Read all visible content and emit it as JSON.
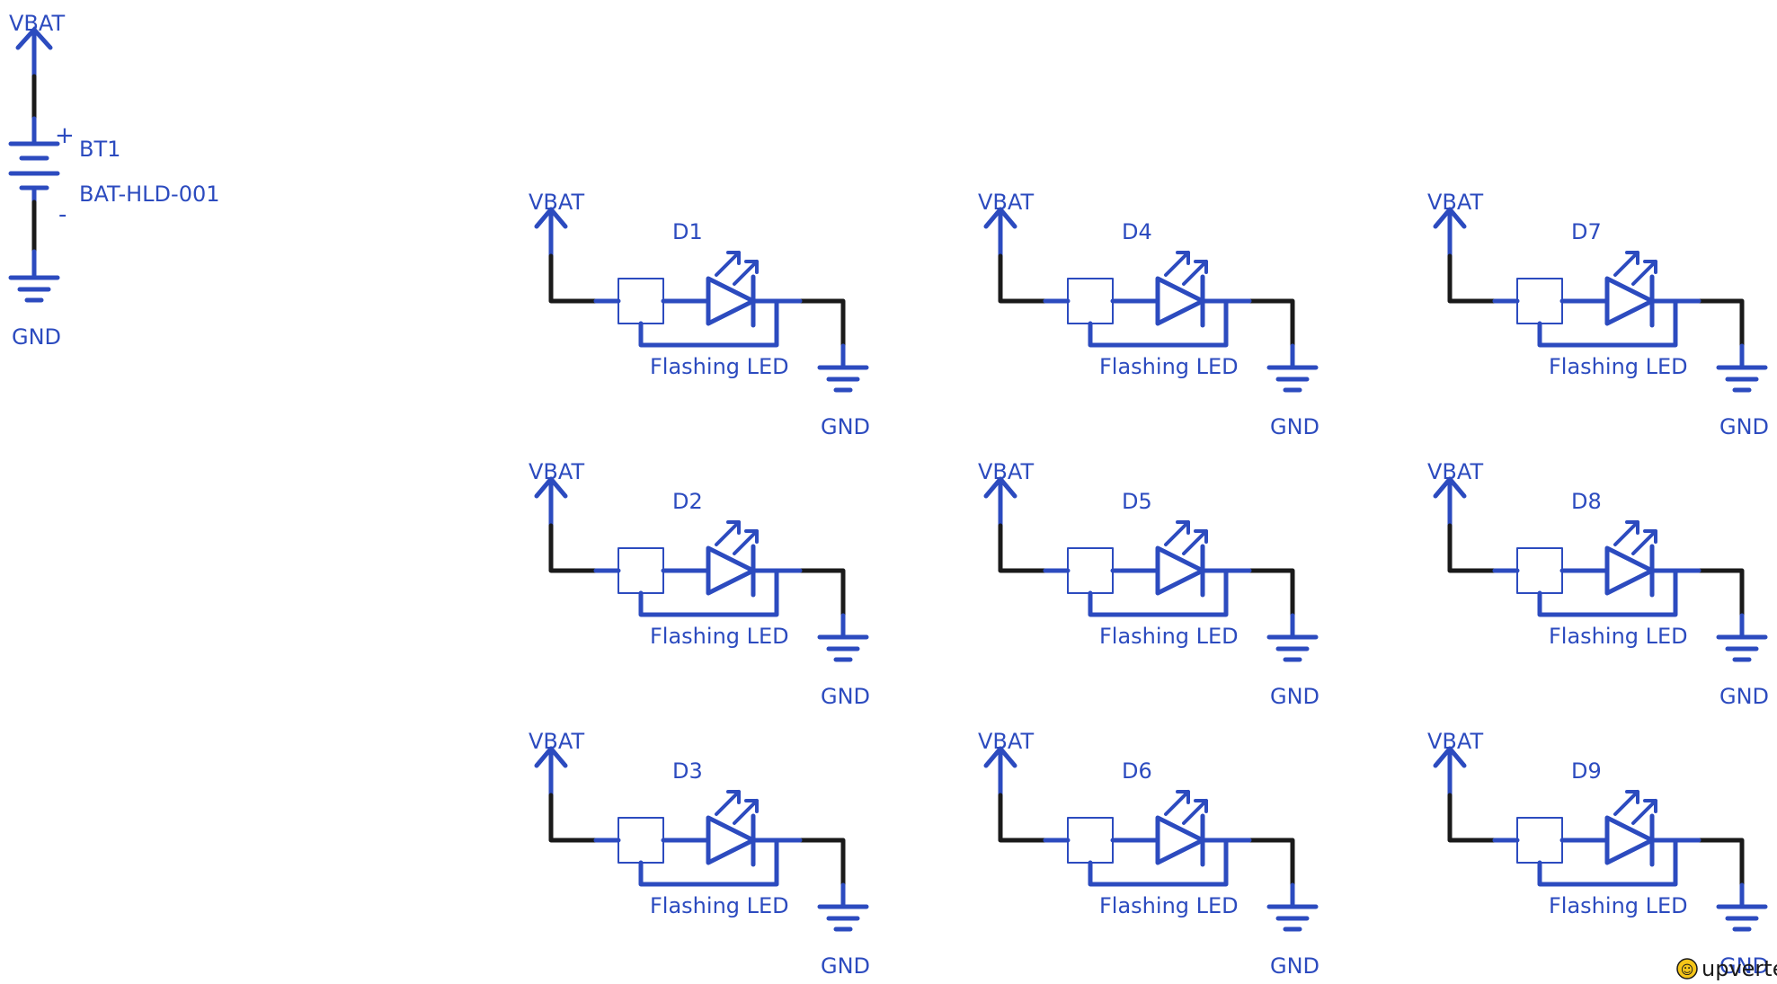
{
  "colors": {
    "symbol": "#2c4bbf",
    "wire": "#1a1a1a",
    "background": "#ffffff",
    "logo_badge": "#f5c518"
  },
  "battery": {
    "power_label": "VBAT",
    "ground_label": "GND",
    "designator": "BT1",
    "value": "BAT-HLD-001",
    "plus_label": "+",
    "minus_label": "-"
  },
  "leds": [
    {
      "designator": "D1",
      "value": "Flashing LED",
      "power_label": "VBAT",
      "ground_label": "GND"
    },
    {
      "designator": "D2",
      "value": "Flashing LED",
      "power_label": "VBAT",
      "ground_label": "GND"
    },
    {
      "designator": "D3",
      "value": "Flashing LED",
      "power_label": "VBAT",
      "ground_label": "GND"
    },
    {
      "designator": "D4",
      "value": "Flashing LED",
      "power_label": "VBAT",
      "ground_label": "GND"
    },
    {
      "designator": "D5",
      "value": "Flashing LED",
      "power_label": "VBAT",
      "ground_label": "GND"
    },
    {
      "designator": "D6",
      "value": "Flashing LED",
      "power_label": "VBAT",
      "ground_label": "GND"
    },
    {
      "designator": "D7",
      "value": "Flashing LED",
      "power_label": "VBAT",
      "ground_label": "GND"
    },
    {
      "designator": "D8",
      "value": "Flashing LED",
      "power_label": "VBAT",
      "ground_label": "GND"
    },
    {
      "designator": "D9",
      "value": "Flashing LED",
      "power_label": "VBAT",
      "ground_label": "GND"
    }
  ],
  "logo": {
    "text": "upverter",
    "icon": "upverter-badge-icon"
  }
}
